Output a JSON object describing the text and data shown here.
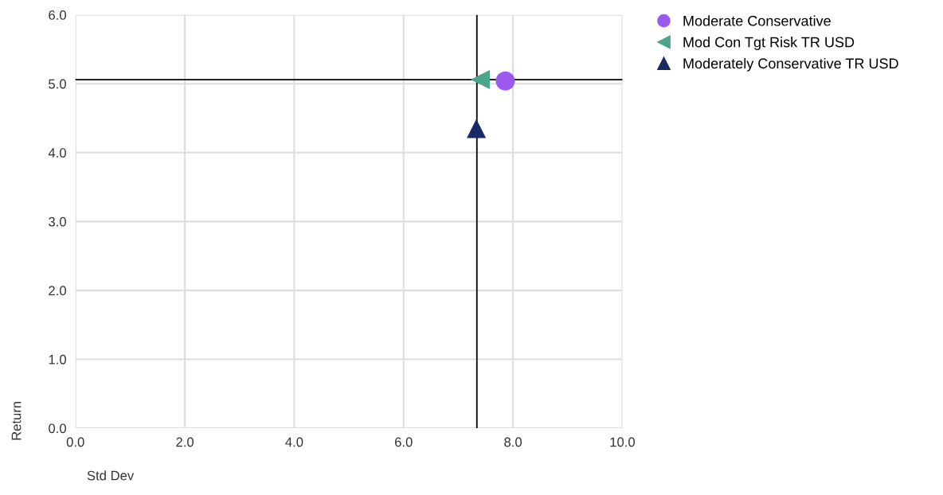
{
  "chart_data": {
    "type": "scatter",
    "xlabel": "Std Dev",
    "ylabel": "Return",
    "series": [
      {
        "name": "Moderate Conservative",
        "color": "#9b59f0",
        "marker": "circle",
        "x": [
          7.86
        ],
        "values": [
          5.04
        ]
      },
      {
        "name": "Mod Con Tgt Risk TR USD",
        "color": "#4aa58a",
        "marker": "triangle-left",
        "x": [
          7.4
        ],
        "values": [
          5.06
        ]
      },
      {
        "name": "Moderately Conservative TR USD",
        "color": "#1a2a66",
        "marker": "triangle",
        "x": [
          7.33
        ],
        "values": [
          4.35
        ]
      }
    ],
    "xlim": [
      0,
      10
    ],
    "ylim": [
      0,
      6
    ],
    "xticks": [
      {
        "value": 0,
        "label": "0.0"
      },
      {
        "value": 2,
        "label": "2.0"
      },
      {
        "value": 4,
        "label": "4.0"
      },
      {
        "value": 6,
        "label": "6.0"
      },
      {
        "value": 8,
        "label": "8.0"
      },
      {
        "value": 10,
        "label": "10.0"
      }
    ],
    "yticks": [
      {
        "value": 0,
        "label": "0.0"
      },
      {
        "value": 1,
        "label": "1.0"
      },
      {
        "value": 2,
        "label": "2.0"
      },
      {
        "value": 3,
        "label": "3.0"
      },
      {
        "value": 4,
        "label": "4.0"
      },
      {
        "value": 5,
        "label": "5.0"
      },
      {
        "value": 6,
        "label": "6.0"
      }
    ],
    "ref_lines": [
      {
        "axis": "y",
        "value": 5.06,
        "color": "#000000"
      },
      {
        "axis": "x",
        "value": 7.34,
        "color": "#000000"
      }
    ],
    "grid": true,
    "legend": "top right"
  }
}
